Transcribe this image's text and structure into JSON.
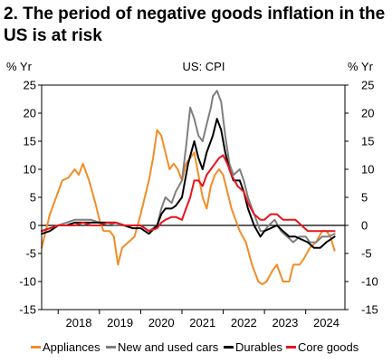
{
  "chart_data": {
    "type": "line",
    "title": "2. The period of negative goods inflation in the US is at risk",
    "subtitle": "US: CPI",
    "ylabel_left": "% Yr",
    "ylabel_right": "% Yr",
    "ylim": [
      -15,
      25
    ],
    "yticks": [
      -15,
      -10,
      -5,
      0,
      5,
      10,
      15,
      20,
      25
    ],
    "xlim": [
      2017.6,
      2024.95
    ],
    "x_tick_labels": [
      "2018",
      "2019",
      "2020",
      "2021",
      "2022",
      "2023",
      "2024"
    ],
    "x_tick_positions": [
      2018,
      2019,
      2020,
      2021,
      2022,
      2023,
      2024
    ],
    "legend_position": "bottom",
    "series": [
      {
        "name": "Appliances",
        "color": "#F28C28",
        "points": [
          [
            2017.6,
            -4
          ],
          [
            2017.8,
            2
          ],
          [
            2017.95,
            5
          ],
          [
            2018.1,
            8
          ],
          [
            2018.25,
            8.5
          ],
          [
            2018.4,
            10
          ],
          [
            2018.5,
            9
          ],
          [
            2018.6,
            11
          ],
          [
            2018.75,
            8
          ],
          [
            2018.9,
            4
          ],
          [
            2019.0,
            1
          ],
          [
            2019.1,
            -1
          ],
          [
            2019.25,
            -1
          ],
          [
            2019.35,
            -2
          ],
          [
            2019.45,
            -7
          ],
          [
            2019.55,
            -4
          ],
          [
            2019.7,
            -3
          ],
          [
            2019.85,
            -2
          ],
          [
            2020.0,
            2
          ],
          [
            2020.1,
            5
          ],
          [
            2020.2,
            8
          ],
          [
            2020.3,
            12
          ],
          [
            2020.4,
            17
          ],
          [
            2020.5,
            16
          ],
          [
            2020.6,
            13
          ],
          [
            2020.7,
            10
          ],
          [
            2020.8,
            11
          ],
          [
            2020.9,
            10
          ],
          [
            2021.0,
            8
          ],
          [
            2021.1,
            11
          ],
          [
            2021.2,
            12
          ],
          [
            2021.3,
            13
          ],
          [
            2021.4,
            9
          ],
          [
            2021.5,
            5
          ],
          [
            2021.6,
            3
          ],
          [
            2021.7,
            7
          ],
          [
            2021.8,
            9
          ],
          [
            2021.9,
            10
          ],
          [
            2022.0,
            9
          ],
          [
            2022.1,
            6
          ],
          [
            2022.2,
            3
          ],
          [
            2022.3,
            1
          ],
          [
            2022.4,
            -1
          ],
          [
            2022.55,
            -3
          ],
          [
            2022.7,
            -7
          ],
          [
            2022.85,
            -10
          ],
          [
            2022.95,
            -10.5
          ],
          [
            2023.05,
            -10
          ],
          [
            2023.2,
            -8
          ],
          [
            2023.3,
            -7
          ],
          [
            2023.45,
            -10
          ],
          [
            2023.6,
            -10
          ],
          [
            2023.7,
            -7
          ],
          [
            2023.85,
            -7
          ],
          [
            2023.95,
            -6
          ],
          [
            2024.1,
            -4
          ],
          [
            2024.25,
            -3
          ],
          [
            2024.4,
            -1
          ],
          [
            2024.5,
            -1
          ],
          [
            2024.6,
            -2
          ],
          [
            2024.7,
            -4.5
          ]
        ]
      },
      {
        "name": "New and used cars",
        "color": "#7F7F7F",
        "points": [
          [
            2017.6,
            -1
          ],
          [
            2017.8,
            -0.5
          ],
          [
            2018.0,
            0
          ],
          [
            2018.2,
            0.5
          ],
          [
            2018.4,
            1
          ],
          [
            2018.6,
            1
          ],
          [
            2018.8,
            1
          ],
          [
            2019.0,
            0.5
          ],
          [
            2019.2,
            0.5
          ],
          [
            2019.4,
            0
          ],
          [
            2019.6,
            0
          ],
          [
            2019.8,
            0
          ],
          [
            2020.0,
            0
          ],
          [
            2020.2,
            -1
          ],
          [
            2020.4,
            0
          ],
          [
            2020.5,
            3
          ],
          [
            2020.6,
            5
          ],
          [
            2020.75,
            4
          ],
          [
            2020.85,
            6
          ],
          [
            2021.0,
            8
          ],
          [
            2021.1,
            14
          ],
          [
            2021.2,
            21
          ],
          [
            2021.3,
            19
          ],
          [
            2021.4,
            16
          ],
          [
            2021.5,
            15
          ],
          [
            2021.6,
            18
          ],
          [
            2021.7,
            21
          ],
          [
            2021.75,
            23
          ],
          [
            2021.85,
            24
          ],
          [
            2021.95,
            22
          ],
          [
            2022.05,
            16
          ],
          [
            2022.15,
            11
          ],
          [
            2022.25,
            9
          ],
          [
            2022.4,
            10
          ],
          [
            2022.5,
            8
          ],
          [
            2022.6,
            5
          ],
          [
            2022.75,
            2
          ],
          [
            2022.9,
            -1
          ],
          [
            2023.0,
            -1
          ],
          [
            2023.1,
            0
          ],
          [
            2023.25,
            1
          ],
          [
            2023.4,
            -1
          ],
          [
            2023.55,
            -2
          ],
          [
            2023.7,
            -3
          ],
          [
            2023.85,
            -2
          ],
          [
            2024.0,
            -2
          ],
          [
            2024.1,
            -3
          ],
          [
            2024.25,
            -3
          ],
          [
            2024.4,
            -2
          ],
          [
            2024.55,
            -2
          ],
          [
            2024.7,
            -1.5
          ]
        ]
      },
      {
        "name": "Durables",
        "color": "#000000",
        "points": [
          [
            2017.6,
            -1.5
          ],
          [
            2017.8,
            -1
          ],
          [
            2018.0,
            0
          ],
          [
            2018.2,
            0
          ],
          [
            2018.4,
            0.5
          ],
          [
            2018.6,
            0.5
          ],
          [
            2018.8,
            0.5
          ],
          [
            2019.0,
            0.5
          ],
          [
            2019.2,
            0.5
          ],
          [
            2019.4,
            0.5
          ],
          [
            2019.6,
            0
          ],
          [
            2019.8,
            -0.5
          ],
          [
            2020.0,
            -0.5
          ],
          [
            2020.2,
            -1.5
          ],
          [
            2020.4,
            0
          ],
          [
            2020.5,
            2
          ],
          [
            2020.6,
            3
          ],
          [
            2020.75,
            3
          ],
          [
            2020.85,
            3.5
          ],
          [
            2021.0,
            5
          ],
          [
            2021.15,
            11
          ],
          [
            2021.3,
            15
          ],
          [
            2021.4,
            12
          ],
          [
            2021.5,
            10
          ],
          [
            2021.6,
            13
          ],
          [
            2021.75,
            16
          ],
          [
            2021.85,
            19
          ],
          [
            2021.95,
            17
          ],
          [
            2022.05,
            13
          ],
          [
            2022.15,
            10
          ],
          [
            2022.25,
            8
          ],
          [
            2022.4,
            8
          ],
          [
            2022.5,
            6
          ],
          [
            2022.6,
            3
          ],
          [
            2022.75,
            0
          ],
          [
            2022.9,
            -2
          ],
          [
            2023.0,
            -1
          ],
          [
            2023.15,
            -0.5
          ],
          [
            2023.3,
            0
          ],
          [
            2023.45,
            -1
          ],
          [
            2023.6,
            -2
          ],
          [
            2023.75,
            -2
          ],
          [
            2023.9,
            -2.5
          ],
          [
            2024.05,
            -3
          ],
          [
            2024.2,
            -4
          ],
          [
            2024.35,
            -4
          ],
          [
            2024.5,
            -3
          ],
          [
            2024.7,
            -2
          ]
        ]
      },
      {
        "name": "Core goods",
        "color": "#E8141B",
        "points": [
          [
            2017.6,
            -1
          ],
          [
            2017.8,
            -0.5
          ],
          [
            2018.0,
            0
          ],
          [
            2018.2,
            0
          ],
          [
            2018.4,
            0
          ],
          [
            2018.6,
            0.5
          ],
          [
            2018.8,
            0
          ],
          [
            2019.0,
            0
          ],
          [
            2019.2,
            0.5
          ],
          [
            2019.4,
            0.5
          ],
          [
            2019.6,
            0
          ],
          [
            2019.8,
            0
          ],
          [
            2020.0,
            0
          ],
          [
            2020.2,
            -1
          ],
          [
            2020.4,
            -0.5
          ],
          [
            2020.5,
            0.5
          ],
          [
            2020.6,
            1
          ],
          [
            2020.75,
            1.5
          ],
          [
            2020.85,
            1.5
          ],
          [
            2021.0,
            1
          ],
          [
            2021.1,
            3
          ],
          [
            2021.2,
            5
          ],
          [
            2021.3,
            8
          ],
          [
            2021.4,
            8
          ],
          [
            2021.5,
            7
          ],
          [
            2021.6,
            9
          ],
          [
            2021.7,
            10
          ],
          [
            2021.8,
            11
          ],
          [
            2021.9,
            12
          ],
          [
            2022.0,
            12.5
          ],
          [
            2022.1,
            11
          ],
          [
            2022.2,
            9
          ],
          [
            2022.35,
            7
          ],
          [
            2022.5,
            6
          ],
          [
            2022.6,
            4
          ],
          [
            2022.75,
            2
          ],
          [
            2022.9,
            1
          ],
          [
            2023.0,
            1
          ],
          [
            2023.15,
            2
          ],
          [
            2023.3,
            2
          ],
          [
            2023.45,
            1
          ],
          [
            2023.6,
            1
          ],
          [
            2023.75,
            1
          ],
          [
            2023.9,
            0
          ],
          [
            2024.05,
            -1
          ],
          [
            2024.2,
            -1
          ],
          [
            2024.35,
            -1
          ],
          [
            2024.5,
            -1
          ],
          [
            2024.7,
            -1
          ]
        ]
      }
    ]
  }
}
